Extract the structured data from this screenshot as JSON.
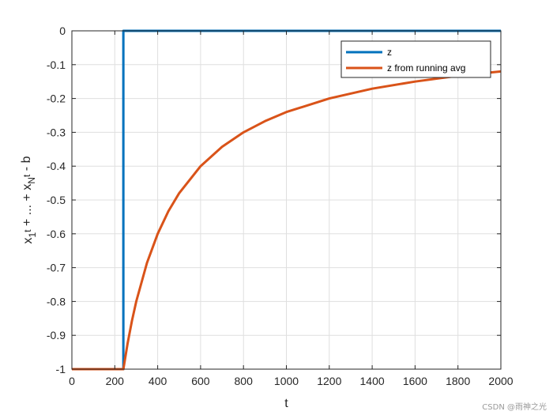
{
  "chart_data": {
    "type": "line",
    "xlabel": "t",
    "ylabel": {
      "parts": [
        {
          "text": "x",
          "shift": "base"
        },
        {
          "text": "1",
          "shift": "sub"
        },
        {
          "text": "t",
          "shift": "sup"
        },
        {
          "text": " + ... + x",
          "shift": "base"
        },
        {
          "text": "N",
          "shift": "sub"
        },
        {
          "text": "t",
          "shift": "sup"
        },
        {
          "text": " - b",
          "shift": "base"
        }
      ]
    },
    "xlim": [
      0,
      2000
    ],
    "ylim": [
      -1,
      0
    ],
    "xticks": [
      0,
      200,
      400,
      600,
      800,
      1000,
      1200,
      1400,
      1600,
      1800,
      2000
    ],
    "yticks": [
      0,
      -0.1,
      -0.2,
      -0.3,
      -0.4,
      -0.5,
      -0.6,
      -0.7,
      -0.8,
      -0.9,
      -1
    ],
    "ytick_labels": [
      "0",
      "-0.1",
      "-0.2",
      "-0.3",
      "-0.4",
      "-0.5",
      "-0.6",
      "-0.7",
      "-0.8",
      "-0.9",
      "-1"
    ],
    "grid": true,
    "legend_position": "top-right",
    "series": [
      {
        "name": "z",
        "color": "#0072BD",
        "x": [
          0,
          240,
          240,
          2000
        ],
        "y": [
          -1,
          -1,
          0,
          0
        ]
      },
      {
        "name": "z from running avg",
        "color": "#D95319",
        "x": [
          0,
          240,
          260,
          280,
          300,
          350,
          400,
          450,
          500,
          600,
          700,
          800,
          900,
          1000,
          1200,
          1400,
          1600,
          1800,
          2000
        ],
        "y": [
          -1,
          -1,
          -0.923,
          -0.857,
          -0.8,
          -0.686,
          -0.6,
          -0.533,
          -0.48,
          -0.4,
          -0.343,
          -0.3,
          -0.267,
          -0.24,
          -0.2,
          -0.171,
          -0.15,
          -0.133,
          -0.12
        ]
      }
    ]
  },
  "watermark": "CSDN @雨神之光"
}
